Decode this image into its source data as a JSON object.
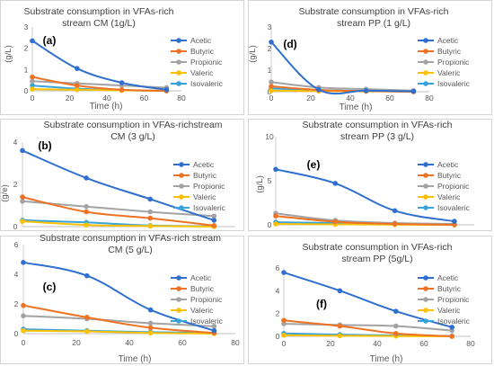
{
  "colors": {
    "Acetic": "#2e6fd0",
    "Butyric": "#ee7223",
    "Propionic": "#a3a3a3",
    "Valeric": "#fbc100",
    "Isovaleric": "#38a3db"
  },
  "chart_data": [
    {
      "type": "line",
      "panel_label": "(a)",
      "title": [
        "Substrate consumption in VFAs-rich",
        "stream CM (1g/L)"
      ],
      "xlabel": "Time (h)",
      "ylabel": "(g/L)",
      "xlim": [
        0,
        80
      ],
      "ylim": [
        0,
        3
      ],
      "xticks": [
        0,
        20,
        40,
        60,
        80
      ],
      "yticks": [
        0,
        1,
        2,
        3
      ],
      "x": [
        0,
        24,
        48,
        72
      ],
      "series": [
        {
          "name": "Acetic",
          "values": [
            2.35,
            1.05,
            0.38,
            0.05
          ]
        },
        {
          "name": "Butyric",
          "values": [
            0.65,
            0.25,
            0.05,
            0.0
          ]
        },
        {
          "name": "Propionic",
          "values": [
            0.45,
            0.35,
            0.25,
            0.15
          ]
        },
        {
          "name": "Valeric",
          "values": [
            0.08,
            0.05,
            0.02,
            0.0
          ]
        },
        {
          "name": "Isovaleric",
          "values": [
            0.25,
            0.1,
            0.03,
            0.0
          ]
        }
      ]
    },
    {
      "type": "line",
      "panel_label": "(d)",
      "title": [
        "Substrate consumption in VFAs-rich",
        "stream PP (1 g/L)"
      ],
      "xlabel": "Time (h)",
      "ylabel": "(g/L)",
      "xlim": [
        0,
        80
      ],
      "ylim": [
        0,
        3
      ],
      "xticks": [
        0,
        20,
        40,
        60,
        80
      ],
      "yticks": [
        0,
        1,
        2,
        3
      ],
      "x": [
        0,
        24,
        48,
        72
      ],
      "series": [
        {
          "name": "Acetic",
          "values": [
            2.3,
            0.1,
            0.05,
            0.02
          ]
        },
        {
          "name": "Butyric",
          "values": [
            0.25,
            0.08,
            0.03,
            0.0
          ]
        },
        {
          "name": "Propionic",
          "values": [
            0.45,
            0.2,
            0.12,
            0.05
          ]
        },
        {
          "name": "Valeric",
          "values": [
            0.05,
            0.03,
            0.02,
            0.0
          ]
        },
        {
          "name": "Isovaleric",
          "values": [
            0.15,
            0.08,
            0.03,
            0.01
          ]
        }
      ]
    },
    {
      "type": "line",
      "panel_label": "(b)",
      "title": [
        "Substrate consumption in VFAs-richstream",
        "CM (3 g/L)"
      ],
      "xlabel": "",
      "ylabel": "(g/e)",
      "xlim": [
        0,
        80
      ],
      "ylim": [
        0,
        4
      ],
      "xticks": [],
      "yticks": [
        0,
        2,
        4
      ],
      "x": [
        0,
        24,
        48,
        72
      ],
      "series": [
        {
          "name": "Acetic",
          "values": [
            3.6,
            2.3,
            1.3,
            0.3
          ]
        },
        {
          "name": "Butyric",
          "values": [
            1.4,
            0.7,
            0.4,
            0.05
          ]
        },
        {
          "name": "Propionic",
          "values": [
            1.2,
            0.95,
            0.7,
            0.5
          ]
        },
        {
          "name": "Valeric",
          "values": [
            0.25,
            0.08,
            0.03,
            0.0
          ]
        },
        {
          "name": "Isovaleric",
          "values": [
            0.3,
            0.2,
            0.05,
            0.02
          ]
        }
      ]
    },
    {
      "type": "line",
      "panel_label": "(e)",
      "title": [
        "Substrate consumption in VFAs-rich",
        "stream PP (3 g/L)"
      ],
      "xlabel": "",
      "ylabel": "(g/L)",
      "xlim": [
        0,
        80
      ],
      "ylim": [
        0,
        10
      ],
      "xticks": [],
      "yticks": [
        0,
        5,
        10
      ],
      "x": [
        0,
        24,
        48,
        72
      ],
      "series": [
        {
          "name": "Acetic",
          "values": [
            6.3,
            4.7,
            1.6,
            0.4
          ]
        },
        {
          "name": "Butyric",
          "values": [
            1.0,
            0.35,
            0.1,
            0.0
          ]
        },
        {
          "name": "Propionic",
          "values": [
            1.3,
            0.5,
            0.2,
            0.1
          ]
        },
        {
          "name": "Valeric",
          "values": [
            0.1,
            0.05,
            0.02,
            0.0
          ]
        },
        {
          "name": "Isovaleric",
          "values": [
            0.3,
            0.2,
            0.1,
            0.05
          ]
        }
      ]
    },
    {
      "type": "line",
      "panel_label": "(c)",
      "title": [
        "Substrate consumption in VFAs-rich stream",
        "CM (5 g/L)"
      ],
      "xlabel": "Time (h)",
      "ylabel": "",
      "xlim": [
        0,
        80
      ],
      "ylim": [
        0,
        6
      ],
      "xticks": [
        0,
        20,
        40,
        60,
        80
      ],
      "yticks": [
        0,
        2,
        4,
        6
      ],
      "x": [
        0,
        24,
        48,
        72
      ],
      "series": [
        {
          "name": "Acetic",
          "values": [
            4.8,
            3.9,
            1.6,
            0.2
          ]
        },
        {
          "name": "Butyric",
          "values": [
            1.9,
            1.1,
            0.4,
            0.05
          ]
        },
        {
          "name": "Propionic",
          "values": [
            1.2,
            1.0,
            0.7,
            0.5
          ]
        },
        {
          "name": "Valeric",
          "values": [
            0.2,
            0.15,
            0.05,
            0.0
          ]
        },
        {
          "name": "Isovaleric",
          "values": [
            0.3,
            0.2,
            0.1,
            0.05
          ]
        }
      ]
    },
    {
      "type": "line",
      "panel_label": "(f)",
      "title": [
        "Substrate consumption in VFAs-rich",
        "stream PP (5g/L)"
      ],
      "xlabel": "Time (h)",
      "ylabel": "",
      "xlim": [
        0,
        80
      ],
      "ylim": [
        0,
        6
      ],
      "xticks": [
        0,
        20,
        40,
        60,
        80
      ],
      "yticks": [
        0,
        2,
        4,
        6
      ],
      "x": [
        0,
        24,
        48,
        72
      ],
      "series": [
        {
          "name": "Acetic",
          "values": [
            5.6,
            4.0,
            2.2,
            0.8
          ]
        },
        {
          "name": "Butyric",
          "values": [
            1.4,
            0.9,
            0.25,
            0.0
          ]
        },
        {
          "name": "Propionic",
          "values": [
            1.1,
            1.0,
            0.9,
            0.5
          ]
        },
        {
          "name": "Valeric",
          "values": [
            0.1,
            0.05,
            0.02,
            0.0
          ]
        },
        {
          "name": "Isovaleric",
          "values": [
            0.25,
            0.15,
            0.08,
            0.03
          ]
        }
      ]
    }
  ]
}
